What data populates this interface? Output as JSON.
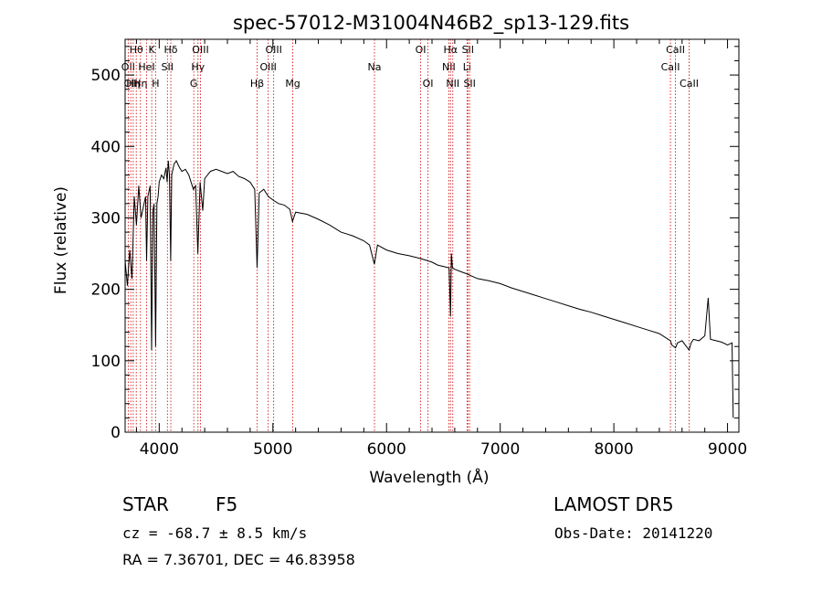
{
  "chart_data": {
    "type": "line",
    "title": "spec-57012-M31004N46B2_sp13-129.fits",
    "xlabel": "Wavelength (Å)",
    "ylabel": "Flux (relative)",
    "xlim": [
      3700,
      9100
    ],
    "ylim": [
      0,
      550
    ],
    "xticks": [
      4000,
      5000,
      6000,
      7000,
      8000,
      9000
    ],
    "yticks": [
      0,
      100,
      200,
      300,
      400,
      500
    ],
    "grid": false,
    "series": [
      {
        "points": [
          [
            3700,
            240
          ],
          [
            3720,
            205
          ],
          [
            3740,
            255
          ],
          [
            3760,
            215
          ],
          [
            3780,
            330
          ],
          [
            3800,
            290
          ],
          [
            3820,
            345
          ],
          [
            3840,
            300
          ],
          [
            3860,
            315
          ],
          [
            3880,
            330
          ],
          [
            3889,
            240
          ],
          [
            3900,
            330
          ],
          [
            3920,
            345
          ],
          [
            3933,
            115
          ],
          [
            3945,
            310
          ],
          [
            3955,
            320
          ],
          [
            3968,
            120
          ],
          [
            3980,
            320
          ],
          [
            3990,
            330
          ],
          [
            4000,
            350
          ],
          [
            4020,
            360
          ],
          [
            4040,
            355
          ],
          [
            4060,
            370
          ],
          [
            4070,
            350
          ],
          [
            4080,
            380
          ],
          [
            4090,
            360
          ],
          [
            4101,
            240
          ],
          [
            4110,
            360
          ],
          [
            4130,
            375
          ],
          [
            4150,
            380
          ],
          [
            4180,
            370
          ],
          [
            4200,
            365
          ],
          [
            4230,
            368
          ],
          [
            4260,
            360
          ],
          [
            4300,
            340
          ],
          [
            4320,
            345
          ],
          [
            4340,
            250
          ],
          [
            4350,
            300
          ],
          [
            4360,
            350
          ],
          [
            4383,
            310
          ],
          [
            4400,
            355
          ],
          [
            4450,
            365
          ],
          [
            4500,
            368
          ],
          [
            4550,
            365
          ],
          [
            4600,
            362
          ],
          [
            4650,
            365
          ],
          [
            4700,
            358
          ],
          [
            4750,
            355
          ],
          [
            4800,
            350
          ],
          [
            4840,
            340
          ],
          [
            4861,
            230
          ],
          [
            4880,
            335
          ],
          [
            4920,
            340
          ],
          [
            4960,
            330
          ],
          [
            5000,
            325
          ],
          [
            5050,
            320
          ],
          [
            5100,
            318
          ],
          [
            5150,
            312
          ],
          [
            5172,
            295
          ],
          [
            5200,
            308
          ],
          [
            5300,
            305
          ],
          [
            5400,
            298
          ],
          [
            5500,
            290
          ],
          [
            5600,
            280
          ],
          [
            5700,
            275
          ],
          [
            5800,
            268
          ],
          [
            5850,
            262
          ],
          [
            5893,
            235
          ],
          [
            5920,
            262
          ],
          [
            6000,
            255
          ],
          [
            6100,
            250
          ],
          [
            6200,
            247
          ],
          [
            6300,
            243
          ],
          [
            6400,
            238
          ],
          [
            6450,
            234
          ],
          [
            6500,
            232
          ],
          [
            6550,
            230
          ],
          [
            6563,
            162
          ],
          [
            6570,
            250
          ],
          [
            6580,
            230
          ],
          [
            6600,
            228
          ],
          [
            6650,
            225
          ],
          [
            6700,
            222
          ],
          [
            6800,
            215
          ],
          [
            6900,
            212
          ],
          [
            7000,
            208
          ],
          [
            7100,
            202
          ],
          [
            7200,
            197
          ],
          [
            7300,
            192
          ],
          [
            7400,
            187
          ],
          [
            7500,
            182
          ],
          [
            7600,
            177
          ],
          [
            7700,
            172
          ],
          [
            7800,
            168
          ],
          [
            7900,
            163
          ],
          [
            8000,
            158
          ],
          [
            8100,
            153
          ],
          [
            8200,
            148
          ],
          [
            8300,
            143
          ],
          [
            8400,
            138
          ],
          [
            8498,
            128
          ],
          [
            8510,
            122
          ],
          [
            8542,
            118
          ],
          [
            8560,
            125
          ],
          [
            8600,
            128
          ],
          [
            8662,
            115
          ],
          [
            8680,
            125
          ],
          [
            8700,
            130
          ],
          [
            8750,
            128
          ],
          [
            8800,
            135
          ],
          [
            8830,
            188
          ],
          [
            8850,
            130
          ],
          [
            8900,
            128
          ],
          [
            8950,
            126
          ],
          [
            9000,
            122
          ],
          [
            9040,
            125
          ],
          [
            9050,
            20
          ]
        ]
      }
    ],
    "line_markers": [
      {
        "wavelength": 3727,
        "label": "OII",
        "row": 2
      },
      {
        "wavelength": 3750,
        "label": "OII",
        "row": 3
      },
      {
        "wavelength": 3771,
        "label": "Hη",
        "row": 3
      },
      {
        "wavelength": 3798,
        "label": "Hθ",
        "row": 1
      },
      {
        "wavelength": 3835,
        "label": "Hη",
        "row": 3
      },
      {
        "wavelength": 3889,
        "label": "HeI",
        "row": 2
      },
      {
        "wavelength": 3934,
        "label": "K",
        "row": 1
      },
      {
        "wavelength": 3968,
        "label": "H",
        "row": 3
      },
      {
        "wavelength": 4072,
        "label": "SII",
        "row": 2
      },
      {
        "wavelength": 4102,
        "label": "Hδ",
        "row": 1
      },
      {
        "wavelength": 4304,
        "label": "G",
        "row": 3
      },
      {
        "wavelength": 4341,
        "label": "Hγ",
        "row": 2
      },
      {
        "wavelength": 4363,
        "label": "OIII",
        "row": 1
      },
      {
        "wavelength": 4861,
        "label": "Hβ",
        "row": 3
      },
      {
        "wavelength": 4959,
        "label": "OIII",
        "row": 2
      },
      {
        "wavelength": 5007,
        "label": "OIII",
        "row": 1
      },
      {
        "wavelength": 5175,
        "label": "Mg",
        "row": 3
      },
      {
        "wavelength": 5894,
        "label": "Na",
        "row": 2
      },
      {
        "wavelength": 6300,
        "label": "OI",
        "row": 1
      },
      {
        "wavelength": 6364,
        "label": "OI",
        "row": 3
      },
      {
        "wavelength": 6548,
        "label": "NII",
        "row": 2
      },
      {
        "wavelength": 6563,
        "label": "Hα",
        "row": 1
      },
      {
        "wavelength": 6583,
        "label": "NII",
        "row": 3
      },
      {
        "wavelength": 6708,
        "label": "Li",
        "row": 2
      },
      {
        "wavelength": 6716,
        "label": "SII",
        "row": 1
      },
      {
        "wavelength": 6731,
        "label": "SII",
        "row": 3
      },
      {
        "wavelength": 8498,
        "label": "CaII",
        "row": 2
      },
      {
        "wavelength": 8542,
        "label": "CaII",
        "row": 1
      },
      {
        "wavelength": 8662,
        "label": "CaII",
        "row": 3
      }
    ]
  },
  "info": {
    "class_label": "STAR",
    "subclass": "F5",
    "survey": "LAMOST DR5",
    "redshift": "cz = -68.7 ± 8.5 km/s",
    "obs_date": "Obs-Date: 20141220",
    "coords": "RA =   7.36701, DEC =  46.83958"
  }
}
